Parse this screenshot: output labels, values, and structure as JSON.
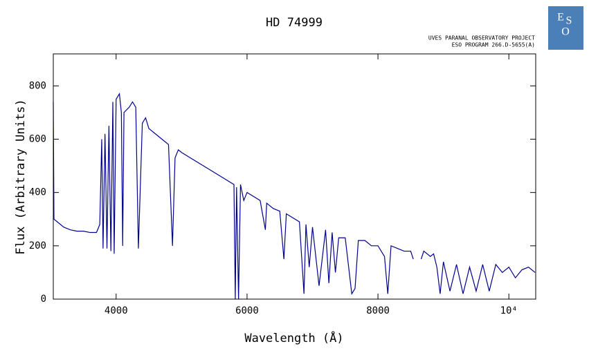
{
  "chart_data": {
    "type": "line",
    "title": "HD 74999",
    "subtitle": [
      "UVES PARANAL OBSERVATORY PROJECT",
      "ESO PROGRAM 266.D-5655(A)"
    ],
    "logo": [
      "E",
      "S",
      "O"
    ],
    "xlabel": "Wavelength (Å)",
    "ylabel": "Flux (Arbitrary Units)",
    "xlim": [
      3040,
      10410
    ],
    "ylim": [
      0,
      920
    ],
    "xticks": [
      4000,
      6000,
      8000,
      {
        "value": 10000,
        "label": "10⁴"
      }
    ],
    "yticks": [
      0,
      200,
      400,
      600,
      800
    ],
    "color": "#00008b",
    "x": [
      3040,
      3050,
      3100,
      3200,
      3300,
      3400,
      3500,
      3600,
      3700,
      3750,
      3780,
      3800,
      3830,
      3860,
      3890,
      3920,
      3950,
      3970,
      4000,
      4050,
      4080,
      4100,
      4120,
      4200,
      4250,
      4300,
      4340,
      4400,
      4450,
      4500,
      4600,
      4700,
      4800,
      4861,
      4900,
      4950,
      5000,
      5200,
      5400,
      5600,
      5800,
      5820,
      5840,
      5870,
      5900,
      5950,
      6000,
      6200,
      6280,
      6300,
      6400,
      6500,
      6563,
      6600,
      6800,
      6870,
      6900,
      6950,
      7000,
      7100,
      7200,
      7250,
      7300,
      7350,
      7400,
      7500,
      7600,
      7650,
      7700,
      7800,
      7900,
      8000,
      8100,
      8150,
      8200,
      8300,
      8400,
      8500,
      8540,
      8600,
      8660,
      8700,
      8800,
      8850,
      8900,
      8950,
      9000,
      9100,
      9200,
      9300,
      9400,
      9500,
      9600,
      9700,
      9800,
      9900,
      10000,
      10100,
      10200,
      10300,
      10400
    ],
    "values": [
      740,
      300,
      290,
      270,
      260,
      255,
      255,
      250,
      250,
      280,
      600,
      190,
      620,
      190,
      650,
      180,
      740,
      170,
      750,
      770,
      700,
      200,
      700,
      720,
      740,
      720,
      190,
      660,
      680,
      640,
      620,
      600,
      580,
      200,
      530,
      560,
      550,
      520,
      490,
      460,
      430,
      0,
      420,
      0,
      430,
      370,
      400,
      370,
      260,
      360,
      340,
      330,
      150,
      320,
      290,
      20,
      280,
      120,
      270,
      50,
      260,
      60,
      250,
      100,
      230,
      230,
      20,
      40,
      220,
      220,
      200,
      200,
      160,
      20,
      200,
      190,
      180,
      180,
      150,
      null,
      150,
      180,
      160,
      170,
      120,
      20,
      140,
      30,
      130,
      20,
      120,
      30,
      130,
      30,
      130,
      100,
      120,
      80,
      110,
      120,
      100
    ]
  }
}
